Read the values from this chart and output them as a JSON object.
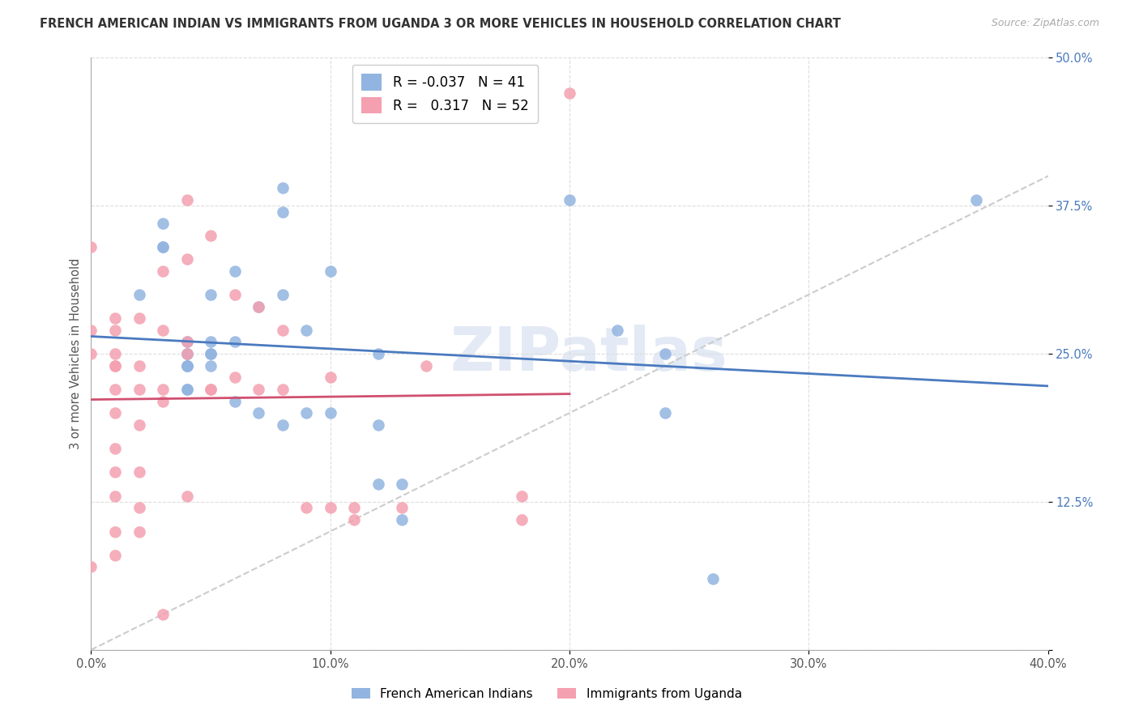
{
  "title": "FRENCH AMERICAN INDIAN VS IMMIGRANTS FROM UGANDA 3 OR MORE VEHICLES IN HOUSEHOLD CORRELATION CHART",
  "source": "Source: ZipAtlas.com",
  "ylabel": "3 or more Vehicles in Household",
  "xlim": [
    0.0,
    0.4
  ],
  "ylim": [
    0.0,
    0.5
  ],
  "legend_blue_R": "-0.037",
  "legend_blue_N": "41",
  "legend_pink_R": "0.317",
  "legend_pink_N": "52",
  "legend_label_blue": "French American Indians",
  "legend_label_pink": "Immigrants from Uganda",
  "blue_color": "#92b4e0",
  "pink_color": "#f4a0b0",
  "blue_line_color": "#4a7abf",
  "pink_line_color": "#d05070",
  "watermark": "ZIPatlas",
  "blue_points_x": [
    0.02,
    0.03,
    0.03,
    0.03,
    0.04,
    0.04,
    0.04,
    0.04,
    0.04,
    0.04,
    0.04,
    0.04,
    0.05,
    0.05,
    0.05,
    0.05,
    0.05,
    0.06,
    0.06,
    0.06,
    0.07,
    0.07,
    0.08,
    0.08,
    0.08,
    0.08,
    0.09,
    0.09,
    0.1,
    0.1,
    0.12,
    0.12,
    0.12,
    0.13,
    0.13,
    0.2,
    0.22,
    0.24,
    0.24,
    0.37,
    0.26
  ],
  "blue_points_y": [
    0.3,
    0.36,
    0.34,
    0.34,
    0.26,
    0.25,
    0.25,
    0.24,
    0.24,
    0.24,
    0.22,
    0.22,
    0.3,
    0.26,
    0.25,
    0.25,
    0.24,
    0.32,
    0.26,
    0.21,
    0.29,
    0.2,
    0.39,
    0.37,
    0.3,
    0.19,
    0.27,
    0.2,
    0.32,
    0.2,
    0.25,
    0.19,
    0.14,
    0.14,
    0.11,
    0.38,
    0.27,
    0.25,
    0.2,
    0.38,
    0.06
  ],
  "pink_points_x": [
    0.0,
    0.0,
    0.0,
    0.0,
    0.01,
    0.01,
    0.01,
    0.01,
    0.01,
    0.01,
    0.01,
    0.01,
    0.01,
    0.01,
    0.01,
    0.01,
    0.02,
    0.02,
    0.02,
    0.02,
    0.02,
    0.02,
    0.02,
    0.03,
    0.03,
    0.03,
    0.03,
    0.04,
    0.04,
    0.04,
    0.04,
    0.04,
    0.05,
    0.05,
    0.06,
    0.06,
    0.07,
    0.07,
    0.08,
    0.08,
    0.09,
    0.1,
    0.1,
    0.11,
    0.11,
    0.13,
    0.14,
    0.18,
    0.18,
    0.2,
    0.05,
    0.03
  ],
  "pink_points_y": [
    0.34,
    0.27,
    0.25,
    0.07,
    0.28,
    0.27,
    0.25,
    0.24,
    0.24,
    0.22,
    0.2,
    0.17,
    0.15,
    0.13,
    0.1,
    0.08,
    0.28,
    0.24,
    0.22,
    0.19,
    0.15,
    0.12,
    0.1,
    0.32,
    0.27,
    0.22,
    0.21,
    0.38,
    0.33,
    0.26,
    0.25,
    0.13,
    0.35,
    0.22,
    0.3,
    0.23,
    0.29,
    0.22,
    0.27,
    0.22,
    0.12,
    0.12,
    0.23,
    0.12,
    0.11,
    0.12,
    0.24,
    0.13,
    0.11,
    0.47,
    0.22,
    0.03
  ]
}
